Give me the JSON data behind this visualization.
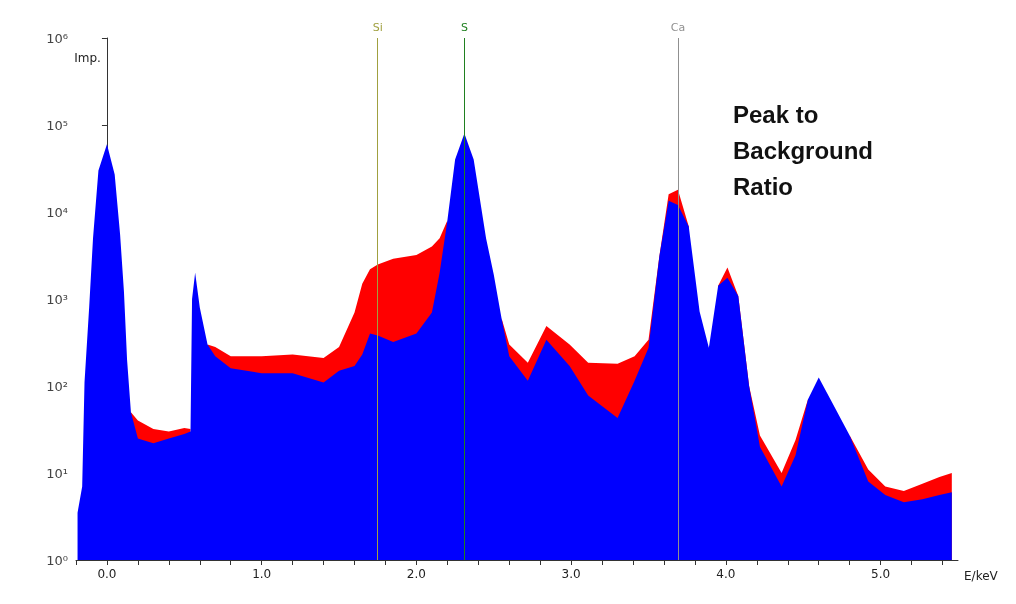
{
  "chart_data": {
    "type": "area",
    "xlabel": "E/keV",
    "ylabel": "Imp.",
    "log": "y",
    "marker": "none",
    "x": [
      -0.19,
      -0.16,
      -0.145,
      -0.115,
      -0.09,
      -0.055,
      0.0,
      0.05,
      0.085,
      0.11,
      0.13,
      0.155,
      0.2,
      0.3,
      0.4,
      0.5,
      0.54,
      0.55,
      0.57,
      0.6,
      0.65,
      0.7,
      0.8,
      1.0,
      1.2,
      1.4,
      1.5,
      1.6,
      1.65,
      1.7,
      1.75,
      1.85,
      2.0,
      2.1,
      2.15,
      2.2,
      2.25,
      2.31,
      2.37,
      2.45,
      2.5,
      2.55,
      2.6,
      2.72,
      2.84,
      2.99,
      3.11,
      3.3,
      3.41,
      3.5,
      3.57,
      3.63,
      3.69,
      3.76,
      3.83,
      3.89,
      3.95,
      4.01,
      4.08,
      4.15,
      4.22,
      4.36,
      4.45,
      4.53,
      4.6,
      4.69,
      4.8,
      4.92,
      5.03,
      5.15,
      5.27,
      5.38,
      5.46
    ],
    "series": [
      {
        "color": "#ff0000",
        "values": [
          null,
          null,
          null,
          null,
          null,
          null,
          null,
          null,
          null,
          null,
          null,
          50,
          40,
          32,
          30,
          33,
          32,
          null,
          null,
          null,
          300,
          280,
          220,
          220,
          230,
          210,
          280,
          700,
          1500,
          2200,
          2500,
          2900,
          3200,
          4000,
          5000,
          8000,
          null,
          null,
          null,
          null,
          null,
          600,
          300,
          185,
          490,
          300,
          185,
          180,
          220,
          340,
          3100,
          16000,
          18000,
          6800,
          null,
          null,
          1420,
          2300,
          1080,
          100,
          27,
          10,
          24,
          70,
          null,
          null,
          27,
          11,
          7,
          6.2,
          7.5,
          9,
          10
        ]
      },
      {
        "color": "#0000ff",
        "values": [
          3.5,
          7,
          110,
          800,
          5000,
          30000,
          60000,
          27000,
          5500,
          1200,
          200,
          50,
          25,
          22,
          25,
          28,
          30,
          1000,
          2000,
          800,
          300,
          220,
          160,
          140,
          140,
          110,
          150,
          170,
          230,
          400,
          380,
          320,
          400,
          700,
          2000,
          8000,
          40000,
          80000,
          40000,
          5000,
          1900,
          600,
          220,
          115,
          340,
          170,
          78,
          43,
          115,
          275,
          3100,
          13500,
          12000,
          6800,
          720,
          275,
          1420,
          1750,
          1080,
          100,
          20,
          7,
          16,
          70,
          125,
          63,
          27,
          8,
          5.6,
          4.6,
          5,
          5.6,
          6
        ]
      }
    ],
    "xlim": [
      -0.2,
      5.5
    ],
    "xticks": [
      {
        "value": -0.2,
        "label": null
      },
      {
        "value": 0,
        "label": "0.0"
      },
      {
        "value": 0.2,
        "label": null
      },
      {
        "value": 0.4,
        "label": null
      },
      {
        "value": 0.6,
        "label": null
      },
      {
        "value": 0.8,
        "label": null
      },
      {
        "value": 1,
        "label": "1.0"
      },
      {
        "value": 1.2,
        "label": null
      },
      {
        "value": 1.4,
        "label": null
      },
      {
        "value": 1.6,
        "label": null
      },
      {
        "value": 1.8,
        "label": null
      },
      {
        "value": 2,
        "label": "2.0"
      },
      {
        "value": 2.2,
        "label": null
      },
      {
        "value": 2.4,
        "label": null
      },
      {
        "value": 2.6,
        "label": null
      },
      {
        "value": 2.8,
        "label": null
      },
      {
        "value": 3,
        "label": "3.0"
      },
      {
        "value": 3.2,
        "label": null
      },
      {
        "value": 3.4,
        "label": null
      },
      {
        "value": 3.6,
        "label": null
      },
      {
        "value": 3.8,
        "label": null
      },
      {
        "value": 4,
        "label": "4.0"
      },
      {
        "value": 4.2,
        "label": null
      },
      {
        "value": 4.4,
        "label": null
      },
      {
        "value": 4.6,
        "label": null
      },
      {
        "value": 4.8,
        "label": null
      },
      {
        "value": 5,
        "label": "5.0"
      },
      {
        "value": 5.2,
        "label": null
      },
      {
        "value": 5.4,
        "label": null
      }
    ],
    "ylim": [
      1,
      1000000
    ],
    "yticks": [
      {
        "value": 1,
        "label": "10⁰"
      },
      {
        "value": 10,
        "label": "10¹"
      },
      {
        "value": 100,
        "label": "10²"
      },
      {
        "value": 1000,
        "label": "10³"
      },
      {
        "value": 10000,
        "label": "10⁴"
      },
      {
        "value": 100000,
        "label": "10⁵"
      },
      {
        "value": 1000000,
        "label": "10⁶"
      }
    ],
    "ref_lines": [
      {
        "axis": "x",
        "value": 1.75,
        "label": "Si",
        "color": "#a0a040"
      },
      {
        "axis": "x",
        "value": 2.31,
        "label": "S",
        "color": "#208020"
      },
      {
        "axis": "x",
        "value": 3.69,
        "label": "Ca",
        "color": "#909090"
      }
    ],
    "annotations": [
      "Peak to Background Ratio"
    ]
  }
}
